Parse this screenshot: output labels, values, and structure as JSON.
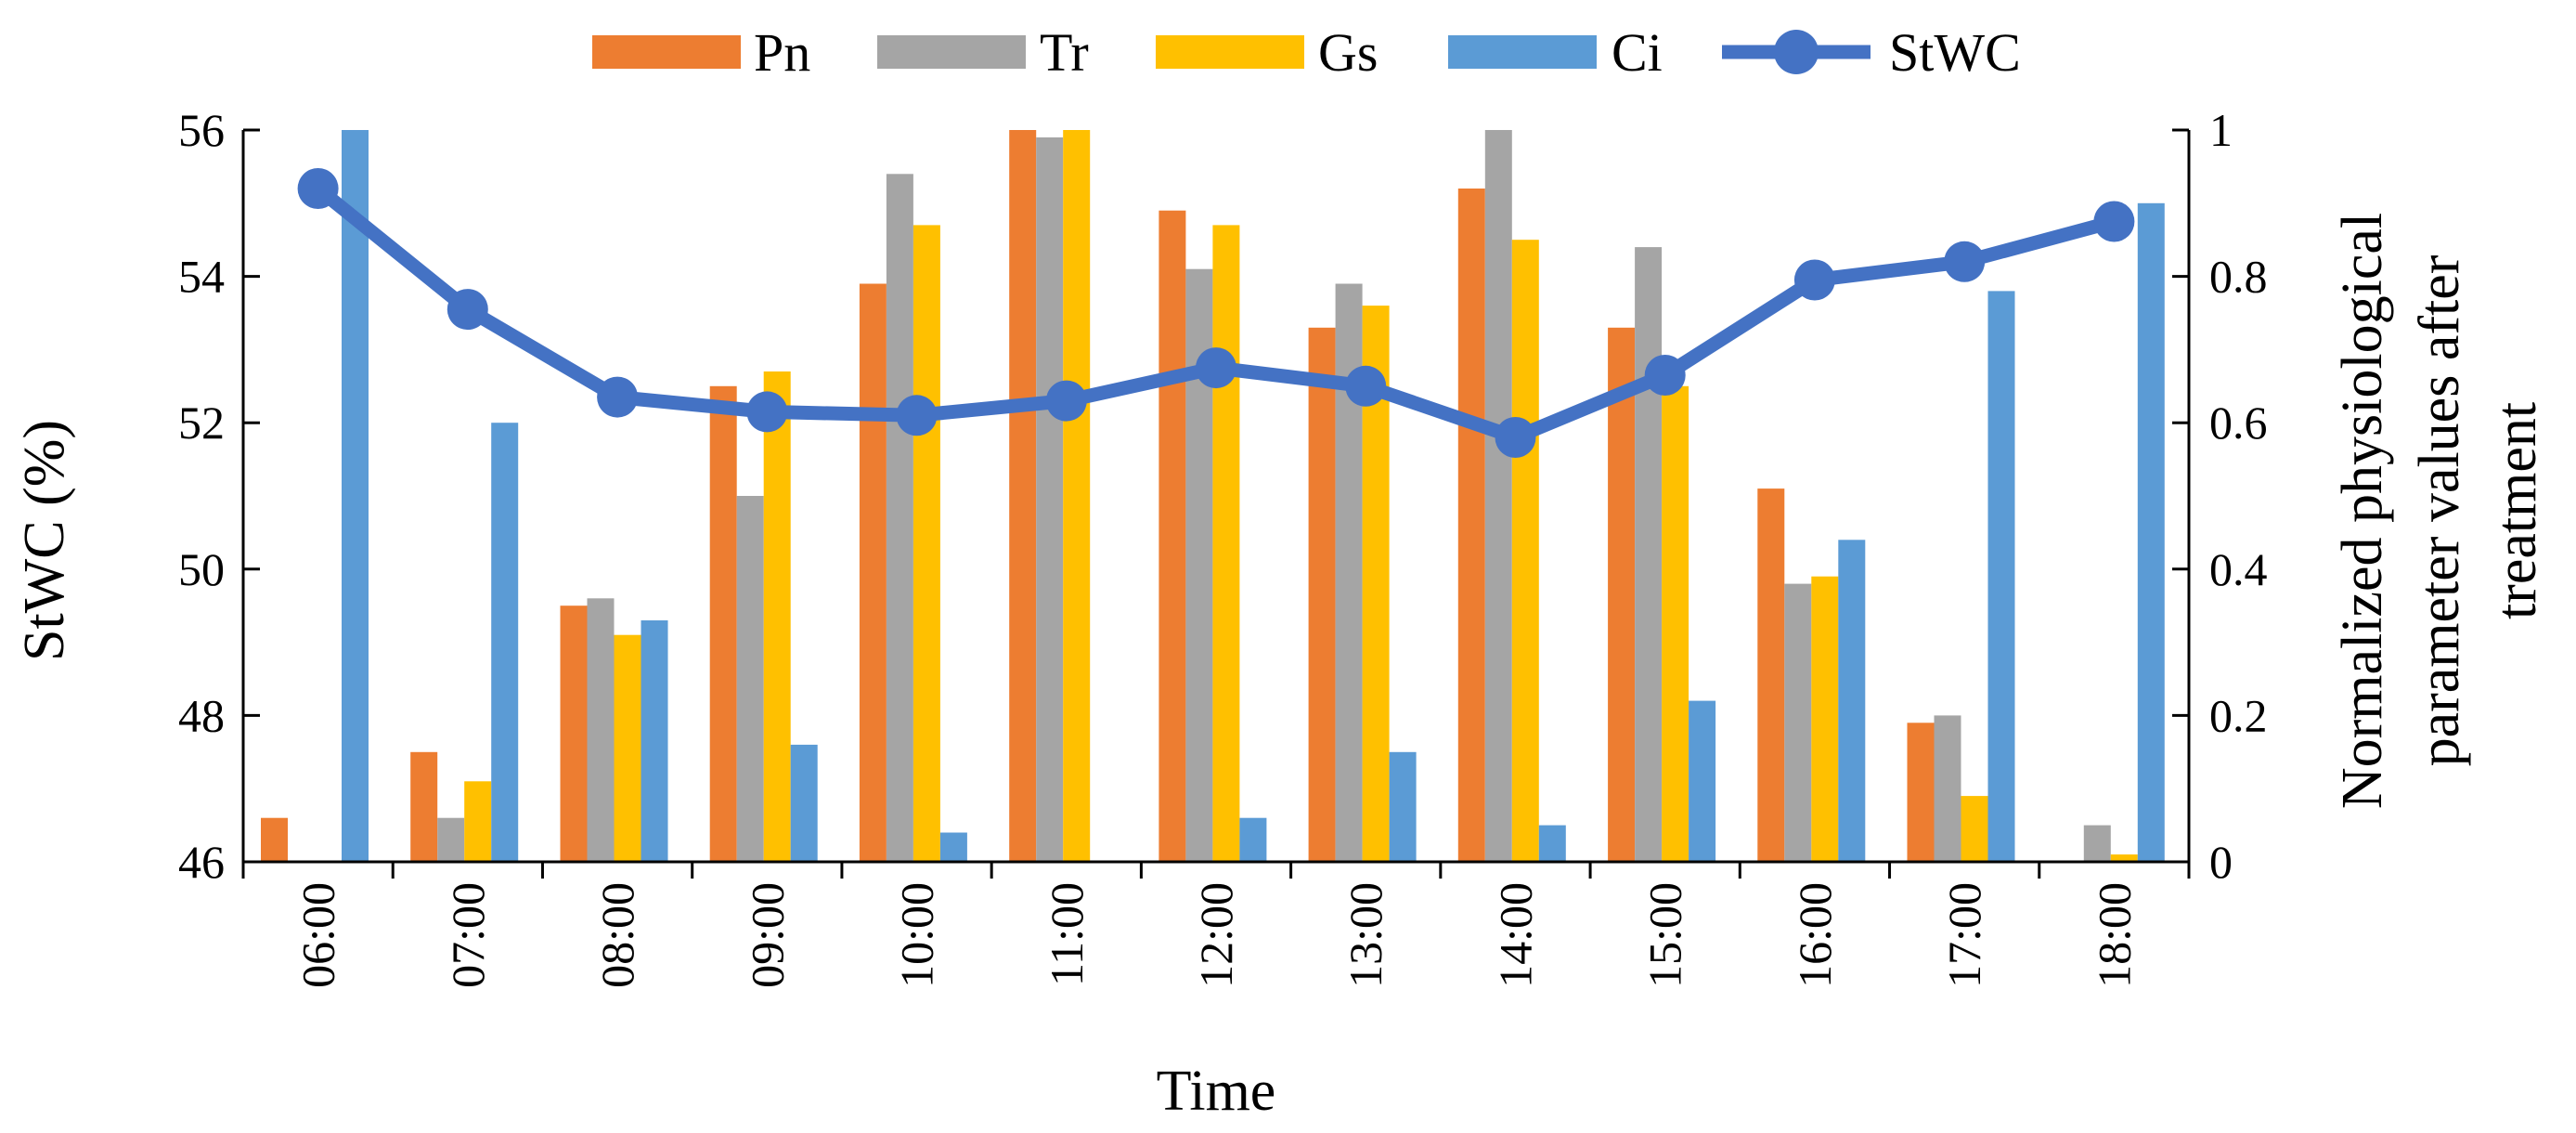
{
  "chart_data": {
    "type": "bar+line",
    "xlabel": "Time",
    "ylabel_left": "StWC (%)",
    "ylabel_right_lines": [
      "Normalized physiological",
      "parameter values after",
      "treatment"
    ],
    "categories": [
      "06:00",
      "07:00",
      "08:00",
      "09:00",
      "10:00",
      "11:00",
      "12:00",
      "13:00",
      "14:00",
      "15:00",
      "16:00",
      "17:00",
      "18:00"
    ],
    "left_axis": {
      "min": 46,
      "max": 56,
      "ticks": [
        "46",
        "48",
        "50",
        "52",
        "54",
        "56"
      ],
      "tick_values": [
        46,
        48,
        50,
        52,
        54,
        56
      ]
    },
    "right_axis": {
      "min": 0,
      "max": 1,
      "ticks": [
        "0",
        "0.2",
        "0.4",
        "0.6",
        "0.8",
        "1"
      ],
      "tick_values": [
        0,
        0.2,
        0.4,
        0.6,
        0.8,
        1
      ]
    },
    "bar_series": [
      {
        "name": "Pn",
        "color": "#ED7D31",
        "values": [
          0.06,
          0.15,
          0.35,
          0.65,
          0.79,
          1.0,
          0.89,
          0.73,
          0.92,
          0.73,
          0.51,
          0.19,
          0.0
        ]
      },
      {
        "name": "Tr",
        "color": "#A5A5A5",
        "values": [
          0.0,
          0.06,
          0.36,
          0.5,
          0.94,
          0.99,
          0.81,
          0.79,
          1.0,
          0.84,
          0.38,
          0.2,
          0.05
        ]
      },
      {
        "name": "Gs",
        "color": "#FFC000",
        "values": [
          0.0,
          0.11,
          0.31,
          0.67,
          0.87,
          1.0,
          0.87,
          0.76,
          0.85,
          0.65,
          0.39,
          0.09,
          0.01
        ]
      },
      {
        "name": "Ci",
        "color": "#5B9BD5",
        "values": [
          1.0,
          0.6,
          0.33,
          0.16,
          0.04,
          0.0,
          0.06,
          0.15,
          0.05,
          0.22,
          0.44,
          0.78,
          0.9
        ]
      }
    ],
    "line_series": {
      "name": "StWC",
      "color": "#4472C4",
      "axis": "left",
      "values": [
        55.2,
        53.55,
        52.35,
        52.15,
        52.1,
        52.3,
        52.75,
        52.5,
        51.8,
        52.65,
        53.95,
        54.2,
        54.75
      ]
    },
    "legend": [
      "Pn",
      "Tr",
      "Gs",
      "Ci",
      "StWC"
    ],
    "legend_position": "top"
  }
}
